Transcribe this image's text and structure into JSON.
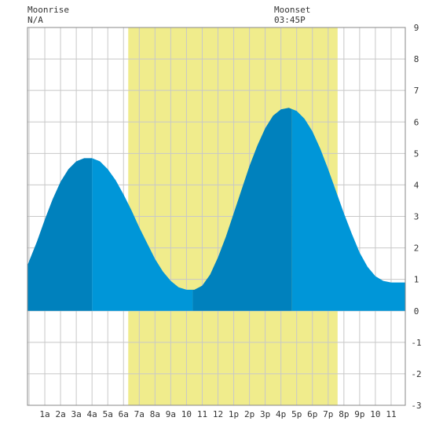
{
  "header": {
    "moonrise_label": "Moonrise",
    "moonrise_value": "N/A",
    "moonset_label": "Moonset",
    "moonset_value": "03:45P"
  },
  "chart_data": {
    "type": "area",
    "title": "",
    "xlabel": "",
    "ylabel": "",
    "x_unit": "hour of day",
    "xlim": [
      -0.1,
      23.9
    ],
    "ylim": [
      -3,
      9
    ],
    "grid": true,
    "x_tick_labels": [
      "1a",
      "2a",
      "3a",
      "4a",
      "5a",
      "6a",
      "7a",
      "8a",
      "9a",
      "10",
      "11",
      "12",
      "1p",
      "2p",
      "3p",
      "4p",
      "5p",
      "6p",
      "7p",
      "8p",
      "9p",
      "10",
      "11"
    ],
    "y_tick_labels": [
      "-3",
      "-2",
      "-1",
      "0",
      "1",
      "2",
      "3",
      "4",
      "5",
      "6",
      "7",
      "8",
      "9"
    ],
    "daylight": {
      "start": 6.3,
      "end": 19.6
    },
    "extrema": [
      {
        "kind": "high",
        "x": 4.0,
        "y": 4.85
      },
      {
        "kind": "low",
        "x": 10.4,
        "y": 0.65
      },
      {
        "kind": "high",
        "x": 16.7,
        "y": 6.45
      },
      {
        "kind": "low",
        "x": 23.9,
        "y": 0.9
      }
    ],
    "series": [
      {
        "values": [
          {
            "x": -0.1,
            "y": 1.45
          },
          {
            "x": 0.5,
            "y": 2.2
          },
          {
            "x": 1.0,
            "y": 2.9
          },
          {
            "x": 1.5,
            "y": 3.55
          },
          {
            "x": 2.0,
            "y": 4.1
          },
          {
            "x": 2.5,
            "y": 4.5
          },
          {
            "x": 3.0,
            "y": 4.75
          },
          {
            "x": 3.5,
            "y": 4.85
          },
          {
            "x": 4.0,
            "y": 4.85
          },
          {
            "x": 4.5,
            "y": 4.75
          },
          {
            "x": 5.0,
            "y": 4.5
          },
          {
            "x": 5.5,
            "y": 4.15
          },
          {
            "x": 6.0,
            "y": 3.7
          },
          {
            "x": 6.5,
            "y": 3.2
          },
          {
            "x": 7.0,
            "y": 2.65
          },
          {
            "x": 7.5,
            "y": 2.15
          },
          {
            "x": 8.0,
            "y": 1.65
          },
          {
            "x": 8.5,
            "y": 1.25
          },
          {
            "x": 9.0,
            "y": 0.95
          },
          {
            "x": 9.5,
            "y": 0.75
          },
          {
            "x": 10.0,
            "y": 0.67
          },
          {
            "x": 10.5,
            "y": 0.67
          },
          {
            "x": 11.0,
            "y": 0.8
          },
          {
            "x": 11.5,
            "y": 1.15
          },
          {
            "x": 12.0,
            "y": 1.7
          },
          {
            "x": 12.5,
            "y": 2.35
          },
          {
            "x": 13.0,
            "y": 3.1
          },
          {
            "x": 13.5,
            "y": 3.85
          },
          {
            "x": 14.0,
            "y": 4.6
          },
          {
            "x": 14.5,
            "y": 5.25
          },
          {
            "x": 15.0,
            "y": 5.8
          },
          {
            "x": 15.5,
            "y": 6.2
          },
          {
            "x": 16.0,
            "y": 6.4
          },
          {
            "x": 16.5,
            "y": 6.45
          },
          {
            "x": 17.0,
            "y": 6.35
          },
          {
            "x": 17.5,
            "y": 6.1
          },
          {
            "x": 18.0,
            "y": 5.7
          },
          {
            "x": 18.5,
            "y": 5.15
          },
          {
            "x": 19.0,
            "y": 4.5
          },
          {
            "x": 19.5,
            "y": 3.8
          },
          {
            "x": 20.0,
            "y": 3.1
          },
          {
            "x": 20.5,
            "y": 2.45
          },
          {
            "x": 21.0,
            "y": 1.85
          },
          {
            "x": 21.5,
            "y": 1.4
          },
          {
            "x": 22.0,
            "y": 1.1
          },
          {
            "x": 22.5,
            "y": 0.95
          },
          {
            "x": 23.0,
            "y": 0.9
          },
          {
            "x": 23.5,
            "y": 0.9
          },
          {
            "x": 23.9,
            "y": 0.9
          }
        ]
      }
    ]
  },
  "colors": {
    "daylight": "#f0ec8c",
    "grid": "#c8c8c8",
    "tide_light": "#0096d8",
    "tide_dark": "#0081bd",
    "frame": "#888888"
  }
}
